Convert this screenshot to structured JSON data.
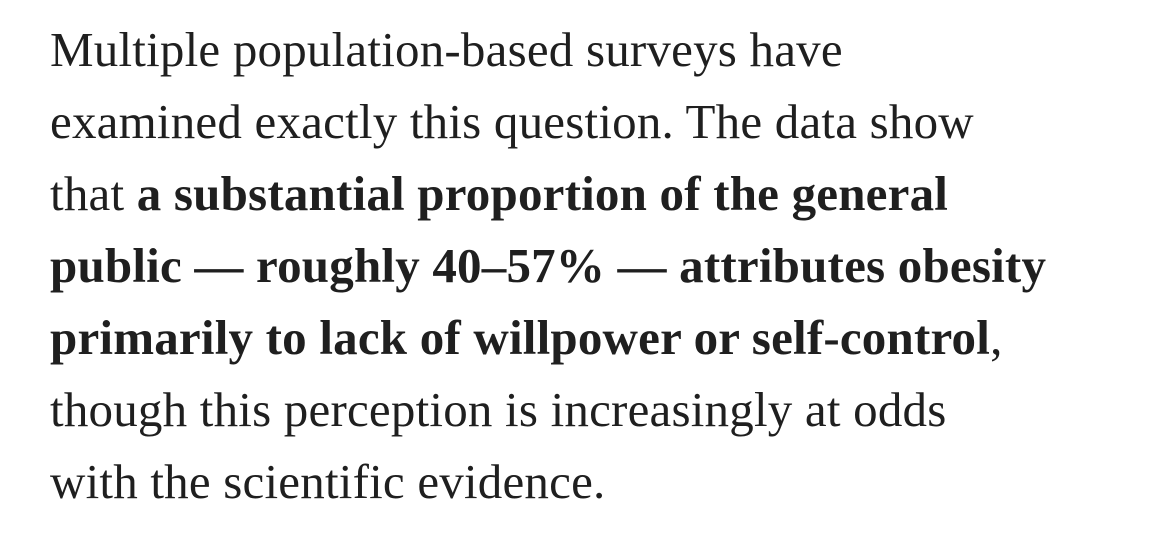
{
  "paragraph": {
    "lines": [
      [
        {
          "text": "Multiple population-based surveys have",
          "bold": false
        }
      ],
      [
        {
          "text": "examined exactly this question. The data show",
          "bold": false
        }
      ],
      [
        {
          "text": "that ",
          "bold": false
        },
        {
          "text": "a substantial proportion of the general",
          "bold": true
        }
      ],
      [
        {
          "text": "public — roughly 40–57% — attributes obesity",
          "bold": true
        }
      ],
      [
        {
          "text": "primarily to lack of willpower or self-control",
          "bold": true
        },
        {
          "text": ",",
          "bold": false
        }
      ],
      [
        {
          "text": "though this perception is increasingly at odds",
          "bold": false
        }
      ],
      [
        {
          "text": "with the scientific evidence.",
          "bold": false
        }
      ]
    ]
  }
}
